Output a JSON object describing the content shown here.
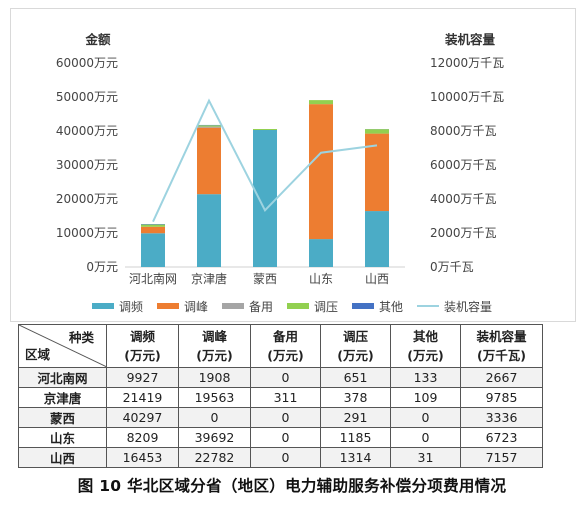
{
  "chart_data": {
    "type": "bar",
    "stacked": true,
    "categories": [
      "河北南网",
      "京津唐",
      "蒙西",
      "山东",
      "山西"
    ],
    "left_axis_title": "金额",
    "right_axis_title": "装机容量",
    "left_ticks": [
      "0万元",
      "10000万元",
      "20000万元",
      "30000万元",
      "40000万元",
      "50000万元",
      "60000万元"
    ],
    "right_ticks": [
      "0万千瓦",
      "2000万千瓦",
      "4000万千瓦",
      "6000万千瓦",
      "8000万千瓦",
      "10000万千瓦",
      "12000万千瓦"
    ],
    "ylim": [
      0,
      60000
    ],
    "y2lim": [
      0,
      12000
    ],
    "grid": false,
    "legend_position": "bottom",
    "series": [
      {
        "name": "调频",
        "color": "#4bacc6",
        "values": [
          9927,
          21419,
          40297,
          8209,
          16453
        ]
      },
      {
        "name": "调峰",
        "color": "#ed7d31",
        "values": [
          1908,
          19563,
          0,
          39692,
          22782
        ]
      },
      {
        "name": "备用",
        "color": "#a5a5a5",
        "values": [
          0,
          311,
          0,
          0,
          0
        ]
      },
      {
        "name": "调压",
        "color": "#92d050",
        "values": [
          651,
          378,
          291,
          1185,
          1314
        ]
      },
      {
        "name": "其他",
        "color": "#4472c4",
        "values": [
          133,
          109,
          0,
          0,
          31
        ]
      }
    ],
    "line_series": {
      "name": "装机容量",
      "color": "#9dd3e0",
      "axis": "right",
      "values": [
        2667,
        9785,
        3336,
        6723,
        7157
      ]
    }
  },
  "table": {
    "corner_top": "种类",
    "corner_bottom": "区域",
    "headers": [
      [
        "调频",
        "(万元)"
      ],
      [
        "调峰",
        "(万元)"
      ],
      [
        "备用",
        "(万元)"
      ],
      [
        "调压",
        "(万元)"
      ],
      [
        "其他",
        "(万元)"
      ],
      [
        "装机容量",
        "(万千瓦)"
      ]
    ],
    "rows": [
      [
        "河北南网",
        "9927",
        "1908",
        "0",
        "651",
        "133",
        "2667"
      ],
      [
        "京津唐",
        "21419",
        "19563",
        "311",
        "378",
        "109",
        "9785"
      ],
      [
        "蒙西",
        "40297",
        "0",
        "0",
        "291",
        "0",
        "3336"
      ],
      [
        "山东",
        "8209",
        "39692",
        "0",
        "1185",
        "0",
        "6723"
      ],
      [
        "山西",
        "16453",
        "22782",
        "0",
        "1314",
        "31",
        "7157"
      ]
    ]
  },
  "caption": "图 10  华北区域分省（地区）电力辅助服务补偿分项费用情况"
}
